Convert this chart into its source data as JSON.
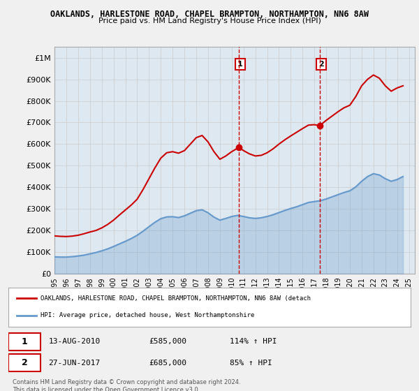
{
  "title": "OAKLANDS, HARLESTONE ROAD, CHAPEL BRAMPTON, NORTHAMPTON, NN6 8AW",
  "subtitle": "Price paid vs. HM Land Registry's House Price Index (HPI)",
  "xlim": [
    1995,
    2025.5
  ],
  "ylim": [
    0,
    1050000
  ],
  "yticks": [
    0,
    100000,
    200000,
    300000,
    400000,
    500000,
    600000,
    700000,
    800000,
    900000,
    1000000
  ],
  "ytick_labels": [
    "£0",
    "£100K",
    "£200K",
    "£300K",
    "£400K",
    "£500K",
    "£600K",
    "£700K",
    "£800K",
    "£900K",
    "£1M"
  ],
  "sale1_x": 2010.617,
  "sale1_y": 585000,
  "sale1_label": "1",
  "sale1_info": "13-AUG-2010    £585,000    114% ↑ HPI",
  "sale2_x": 2017.489,
  "sale2_y": 685000,
  "sale2_label": "2",
  "sale2_info": "27-JUN-2017    £685,000    85% ↑ HPI",
  "red_line_color": "#cc0000",
  "blue_line_color": "#6699cc",
  "background_color": "#dde8f0",
  "plot_bg_color": "#ffffff",
  "grid_color": "#cccccc",
  "legend_red_label": "OAKLANDS, HARLESTONE ROAD, CHAPEL BRAMPTON, NORTHAMPTON, NN6 8AW (detach",
  "legend_blue_label": "HPI: Average price, detached house, West Northamptonshire",
  "footnote": "Contains HM Land Registry data © Crown copyright and database right 2024.\nThis data is licensed under the Open Government Licence v3.0.",
  "red_x": [
    1995.0,
    1995.5,
    1996.0,
    1996.5,
    1997.0,
    1997.5,
    1998.0,
    1998.5,
    1999.0,
    1999.5,
    2000.0,
    2000.5,
    2001.0,
    2001.5,
    2002.0,
    2002.5,
    2003.0,
    2003.5,
    2004.0,
    2004.5,
    2005.0,
    2005.5,
    2006.0,
    2006.5,
    2007.0,
    2007.5,
    2008.0,
    2008.5,
    2009.0,
    2009.5,
    2010.0,
    2010.617,
    2011.0,
    2011.5,
    2012.0,
    2012.5,
    2013.0,
    2013.5,
    2014.0,
    2014.5,
    2015.0,
    2015.5,
    2016.0,
    2016.5,
    2017.0,
    2017.489,
    2017.5,
    2018.0,
    2018.5,
    2019.0,
    2019.5,
    2020.0,
    2020.5,
    2021.0,
    2021.5,
    2022.0,
    2022.5,
    2023.0,
    2023.5,
    2024.0,
    2024.5
  ],
  "red_y": [
    175000,
    173000,
    172000,
    174000,
    178000,
    185000,
    193000,
    200000,
    212000,
    228000,
    248000,
    272000,
    295000,
    318000,
    345000,
    390000,
    440000,
    490000,
    535000,
    560000,
    565000,
    558000,
    570000,
    600000,
    630000,
    640000,
    610000,
    565000,
    530000,
    545000,
    565000,
    585000,
    570000,
    555000,
    545000,
    548000,
    560000,
    578000,
    600000,
    620000,
    638000,
    655000,
    672000,
    688000,
    690000,
    685000,
    688000,
    710000,
    730000,
    750000,
    768000,
    780000,
    820000,
    870000,
    900000,
    920000,
    905000,
    870000,
    845000,
    860000,
    870000
  ],
  "blue_x": [
    1995.0,
    1995.5,
    1996.0,
    1996.5,
    1997.0,
    1997.5,
    1998.0,
    1998.5,
    1999.0,
    1999.5,
    2000.0,
    2000.5,
    2001.0,
    2001.5,
    2002.0,
    2002.5,
    2003.0,
    2003.5,
    2004.0,
    2004.5,
    2005.0,
    2005.5,
    2006.0,
    2006.5,
    2007.0,
    2007.5,
    2008.0,
    2008.5,
    2009.0,
    2009.5,
    2010.0,
    2010.5,
    2011.0,
    2011.5,
    2012.0,
    2012.5,
    2013.0,
    2013.5,
    2014.0,
    2014.5,
    2015.0,
    2015.5,
    2016.0,
    2016.5,
    2017.0,
    2017.5,
    2018.0,
    2018.5,
    2019.0,
    2019.5,
    2020.0,
    2020.5,
    2021.0,
    2021.5,
    2022.0,
    2022.5,
    2023.0,
    2023.5,
    2024.0,
    2024.5
  ],
  "blue_y": [
    78000,
    77000,
    77000,
    79000,
    82000,
    86000,
    92000,
    98000,
    106000,
    115000,
    126000,
    138000,
    150000,
    163000,
    178000,
    197000,
    218000,
    238000,
    255000,
    263000,
    264000,
    260000,
    268000,
    280000,
    292000,
    296000,
    282000,
    262000,
    248000,
    256000,
    265000,
    270000,
    265000,
    259000,
    256000,
    259000,
    265000,
    273000,
    283000,
    293000,
    302000,
    310000,
    320000,
    330000,
    334000,
    338000,
    346000,
    356000,
    366000,
    376000,
    384000,
    402000,
    428000,
    450000,
    463000,
    457000,
    440000,
    428000,
    436000,
    450000
  ]
}
